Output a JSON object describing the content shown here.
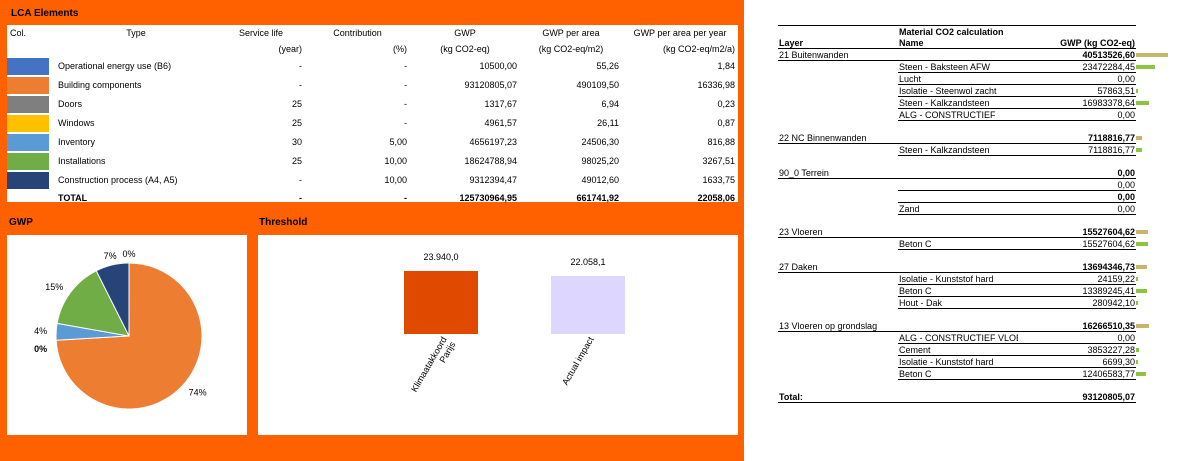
{
  "lca": {
    "title": "LCA Elements",
    "headers": [
      "Col.",
      "Type",
      "Service life",
      "Contribution",
      "GWP",
      "GWP per area",
      "GWP per area per year"
    ],
    "units": [
      "",
      "",
      "(year)",
      "(%)",
      "(kg CO2-eq)",
      "(kg CO2-eq/m2)",
      "(kg CO2-eq/m2/a)"
    ],
    "rows": [
      {
        "color": "#4472c4",
        "type": "Operational energy use (B6)",
        "life": "-",
        "contribution": "-",
        "gwp": "10500,00",
        "per_area": "55,26",
        "per_year": "1,84"
      },
      {
        "color": "#ed7d31",
        "type": "Building components",
        "life": "-",
        "contribution": "-",
        "gwp": "93120805,07",
        "per_area": "490109,50",
        "per_year": "16336,98"
      },
      {
        "color": "#7f7f7f",
        "type": "Doors",
        "life": "25",
        "contribution": "-",
        "gwp": "1317,67",
        "per_area": "6,94",
        "per_year": "0,23"
      },
      {
        "color": "#ffc000",
        "type": "Windows",
        "life": "25",
        "contribution": "-",
        "gwp": "4961,57",
        "per_area": "26,11",
        "per_year": "0,87"
      },
      {
        "color": "#5b9bd5",
        "type": "Inventory",
        "life": "30",
        "contribution": "5,00",
        "gwp": "4656197,23",
        "per_area": "24506,30",
        "per_year": "816,88"
      },
      {
        "color": "#70ad47",
        "type": "Installations",
        "life": "25",
        "contribution": "10,00",
        "gwp": "18624788,94",
        "per_area": "98025,20",
        "per_year": "3267,51"
      },
      {
        "color": "#264478",
        "type": "Construction process (A4, A5)",
        "life": "-",
        "contribution": "10,00",
        "gwp": "9312394,47",
        "per_area": "49012,60",
        "per_year": "1633,75"
      }
    ],
    "total": {
      "label": "TOTAL",
      "life": "-",
      "contribution": "-",
      "gwp": "125730964,95",
      "per_area": "661741,92",
      "per_year": "22058,06"
    }
  },
  "gwp_title": "GWP",
  "threshold_title": "Threshold",
  "chart_data": [
    {
      "type": "pie",
      "title": "GWP",
      "slices": [
        {
          "label": "0%",
          "value": 0.01,
          "color": "#4472c4"
        },
        {
          "label": "74%",
          "value": 74.06,
          "color": "#ed7d31"
        },
        {
          "label": "0%",
          "value": 0.0,
          "color": "#7f7f7f"
        },
        {
          "label": "0%",
          "value": 0.0,
          "color": "#ffc000"
        },
        {
          "label": "4%",
          "value": 3.7,
          "color": "#5b9bd5"
        },
        {
          "label": "15%",
          "value": 14.81,
          "color": "#70ad47"
        },
        {
          "label": "7%",
          "value": 7.41,
          "color": "#264478"
        }
      ]
    },
    {
      "type": "bar",
      "title": "Threshold",
      "categories": [
        "Klimaatakkoord Parijs",
        "Actual impact"
      ],
      "values": [
        23940.0,
        22058.1
      ],
      "labels": [
        "23.940,0",
        "22.058,1"
      ],
      "colors": [
        "#e04a00",
        "#ddd6ff"
      ],
      "ylim": [
        0,
        26000
      ]
    }
  ],
  "material": {
    "title": "Material CO2 calculation",
    "headers": {
      "layer": "Layer",
      "name": "Name",
      "gwp": "GWP (kg CO2-eq)"
    },
    "bar_colors": {
      "layer": "#c9b46a",
      "name": "#8cc63f"
    },
    "bar_max": 40513526.6,
    "groups": [
      {
        "layer": "21 Buitenwanden",
        "total": "40513526,60",
        "total_value": 40513526.6,
        "items": [
          {
            "name": "Steen - Baksteen AFW",
            "gwp": "23472284,45",
            "value": 23472284.45
          },
          {
            "name": "Lucht",
            "gwp": "0,00",
            "value": 0
          },
          {
            "name": "Isolatie - Steenwol zacht",
            "gwp": "57863,51",
            "value": 57863.51
          },
          {
            "name": "Steen - Kalkzandsteen",
            "gwp": "16983378,64",
            "value": 16983378.64
          },
          {
            "name": "ALG - CONSTRUCTIEF",
            "gwp": "0,00",
            "value": 0
          }
        ]
      },
      {
        "layer": "22 NC Binnenwanden",
        "total": "7118816,77",
        "total_value": 7118816.77,
        "items": [
          {
            "name": "Steen - Kalkzandsteen",
            "gwp": "7118816,77",
            "value": 7118816.77
          }
        ]
      },
      {
        "layer": "90_0 Terrein",
        "total": "0,00",
        "total_value": 0,
        "items": [
          {
            "name": "",
            "gwp": "0,00",
            "value": 0,
            "bold": false
          },
          {
            "name": "",
            "gwp": "0,00",
            "value": 0,
            "bold": true
          },
          {
            "name": "Zand",
            "gwp": "0,00",
            "value": 0
          }
        ]
      },
      {
        "layer": "23 Vloeren",
        "total": "15527604,62",
        "total_value": 15527604.62,
        "items": [
          {
            "name": "Beton C",
            "gwp": "15527604,62",
            "value": 15527604.62
          }
        ]
      },
      {
        "layer": "27 Daken",
        "total": "13694346,73",
        "total_value": 13694346.73,
        "items": [
          {
            "name": "Isolatie - Kunststof hard",
            "gwp": "24159,22",
            "value": 24159.22
          },
          {
            "name": "Beton C",
            "gwp": "13389245,41",
            "value": 13389245.41
          },
          {
            "name": "Hout - Dak",
            "gwp": "280942,10",
            "value": 280942.1
          }
        ]
      },
      {
        "layer": "13 Vloeren op grondslag",
        "total": "16266510,35",
        "total_value": 16266510.35,
        "items": [
          {
            "name": "ALG - CONSTRUCTIEF VLOER",
            "gwp": "0,00",
            "value": 0
          },
          {
            "name": "Cement",
            "gwp": "3853227,28",
            "value": 3853227.28
          },
          {
            "name": "Isolatie - Kunststof hard",
            "gwp": "6699,30",
            "value": 6699.3
          },
          {
            "name": "Beton C",
            "gwp": "12406583,77",
            "value": 12406583.77
          }
        ]
      }
    ],
    "total_label": "Total:",
    "total_value": "93120805,07"
  }
}
